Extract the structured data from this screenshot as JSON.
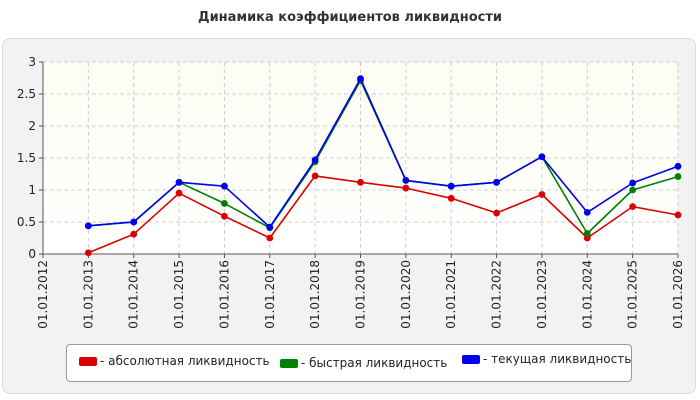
{
  "chart_data": {
    "type": "line",
    "title": "Динамика коэффициентов ликвидности",
    "xlabel": "",
    "ylabel": "",
    "categories": [
      "01.01.2012",
      "01.01.2013",
      "01.01.2014",
      "01.01.2015",
      "01.01.2016",
      "01.01.2017",
      "01.01.2018",
      "01.01.2019",
      "01.01.2020",
      "01.01.2021",
      "01.01.2022",
      "01.01.2023",
      "01.01.2024",
      "01.01.2025",
      "01.01.2026"
    ],
    "y_ticks": [
      "0",
      "0.5",
      "1",
      "1.5",
      "2",
      "2.5",
      "3"
    ],
    "ylim": [
      0,
      3
    ],
    "grid": true,
    "legend_position": "bottom",
    "series": [
      {
        "name": "- абсолютная ликвидность",
        "color": "#dd0000",
        "values": [
          null,
          0.02,
          0.31,
          0.95,
          0.59,
          0.25,
          1.22,
          1.12,
          1.03,
          0.87,
          0.64,
          0.93,
          0.25,
          0.74,
          0.61
        ]
      },
      {
        "name": "- быстрая ликвидность",
        "color": "#008000",
        "values": [
          null,
          0.44,
          0.5,
          1.12,
          0.79,
          0.41,
          1.44,
          2.71,
          1.15,
          1.06,
          1.12,
          1.52,
          0.32,
          1.0,
          1.21
        ]
      },
      {
        "name": "- текущая ликвидность",
        "color": "#0000ee",
        "values": [
          null,
          0.44,
          0.5,
          1.12,
          1.06,
          0.42,
          1.47,
          2.74,
          1.15,
          1.06,
          1.12,
          1.52,
          0.65,
          1.11,
          1.37
        ]
      }
    ]
  }
}
